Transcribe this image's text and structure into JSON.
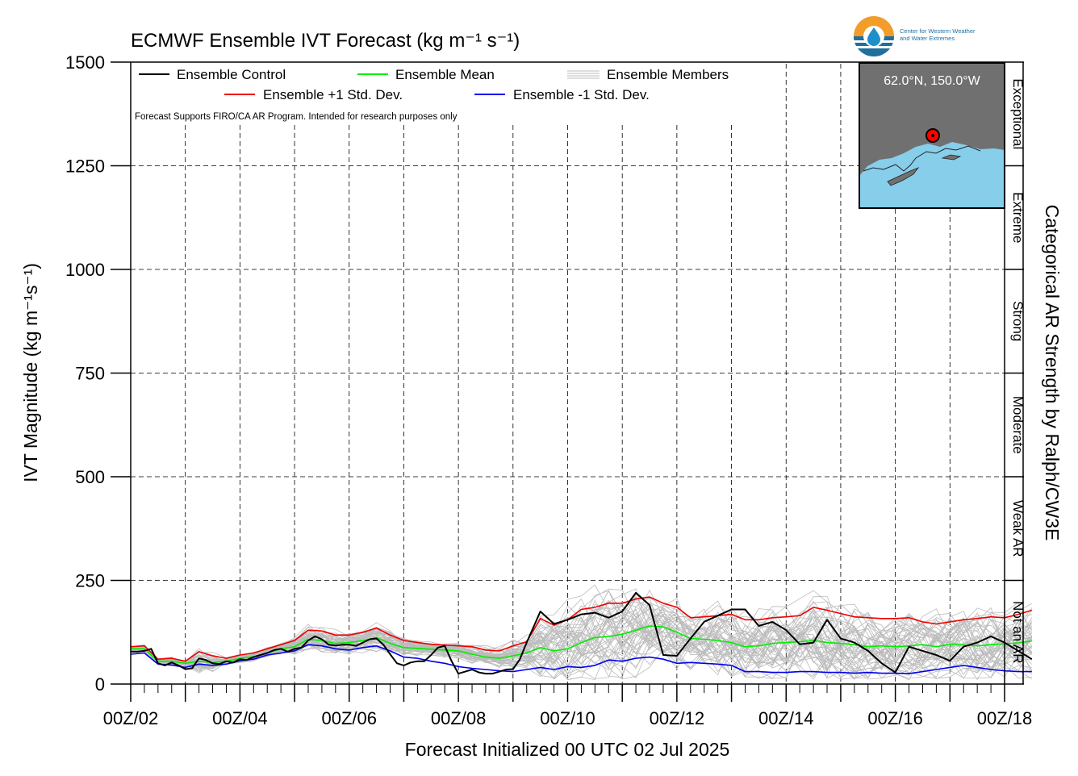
{
  "chart_data": {
    "type": "line",
    "title": "ECMWF Ensemble IVT Forecast (kg m⁻¹ s⁻¹)",
    "xlabel": "Forecast Initialized 00 UTC 02 Jul 2025",
    "ylabel": "IVT Magnitude (kg m⁻¹s⁻¹)",
    "right_label": "Categorical AR Strength by Ralph/CW3E",
    "note": "Forecast Supports FIRO/CA AR Program. Intended for research purposes only",
    "x_unit": "forecast hours from 00 UTC 02 Jul 2025",
    "xlim": [
      0,
      384
    ],
    "ylim": [
      0,
      1500
    ],
    "y_ticks": [
      0,
      250,
      500,
      750,
      1000,
      1250,
      1500
    ],
    "x_tick_hours": [
      0,
      48,
      96,
      144,
      192,
      240,
      288,
      336,
      384
    ],
    "x_tick_labels": [
      "00Z/02",
      "00Z/04",
      "00Z/06",
      "00Z/08",
      "00Z/10",
      "00Z/12",
      "00Z/14",
      "00Z/16",
      "00Z/18"
    ],
    "grid": true,
    "legend": {
      "placement": "top-left",
      "entries": [
        "Ensemble Control",
        "Ensemble Mean",
        "Ensemble Members",
        "Ensemble +1 Std. Dev.",
        "Ensemble -1 Std. Dev."
      ]
    },
    "categories": [
      {
        "label": "Not an AR",
        "range": [
          0,
          250
        ]
      },
      {
        "label": "Weak AR",
        "range": [
          250,
          500
        ]
      },
      {
        "label": "Moderate",
        "range": [
          500,
          750
        ]
      },
      {
        "label": "Strong",
        "range": [
          750,
          1000
        ]
      },
      {
        "label": "Extreme",
        "range": [
          1000,
          1250
        ]
      },
      {
        "label": "Exceptional",
        "range": [
          1250,
          1500
        ]
      }
    ],
    "series": [
      {
        "name": "Ensemble Control",
        "color": "#000000",
        "points": [
          [
            0,
            78
          ],
          [
            3,
            78
          ],
          [
            6,
            80
          ],
          [
            9,
            85
          ],
          [
            12,
            50
          ],
          [
            15,
            45
          ],
          [
            18,
            52
          ],
          [
            21,
            45
          ],
          [
            24,
            36
          ],
          [
            27,
            38
          ],
          [
            30,
            62
          ],
          [
            33,
            58
          ],
          [
            36,
            50
          ],
          [
            39,
            48
          ],
          [
            42,
            55
          ],
          [
            45,
            52
          ],
          [
            48,
            60
          ],
          [
            51,
            58
          ],
          [
            54,
            65
          ],
          [
            57,
            70
          ],
          [
            60,
            75
          ],
          [
            63,
            82
          ],
          [
            66,
            85
          ],
          [
            69,
            78
          ],
          [
            72,
            85
          ],
          [
            75,
            88
          ],
          [
            78,
            105
          ],
          [
            81,
            115
          ],
          [
            84,
            108
          ],
          [
            87,
            95
          ],
          [
            90,
            93
          ],
          [
            93,
            95
          ],
          [
            96,
            95
          ],
          [
            99,
            92
          ],
          [
            102,
            100
          ],
          [
            105,
            108
          ],
          [
            108,
            110
          ],
          [
            111,
            95
          ],
          [
            114,
            72
          ],
          [
            117,
            50
          ],
          [
            120,
            45
          ],
          [
            123,
            52
          ],
          [
            126,
            55
          ],
          [
            129,
            55
          ],
          [
            132,
            70
          ],
          [
            135,
            88
          ],
          [
            138,
            92
          ],
          [
            141,
            55
          ],
          [
            144,
            25
          ],
          [
            147,
            30
          ],
          [
            150,
            35
          ],
          [
            153,
            28
          ],
          [
            156,
            25
          ],
          [
            159,
            25
          ],
          [
            162,
            30
          ],
          [
            165,
            35
          ],
          [
            168,
            36
          ],
          [
            171,
            60
          ],
          [
            174,
            100
          ],
          [
            180,
            175
          ],
          [
            186,
            145
          ],
          [
            192,
            155
          ],
          [
            198,
            168
          ],
          [
            204,
            172
          ],
          [
            210,
            160
          ],
          [
            216,
            175
          ],
          [
            222,
            220
          ],
          [
            228,
            190
          ],
          [
            234,
            70
          ],
          [
            240,
            68
          ],
          [
            246,
            110
          ],
          [
            252,
            150
          ],
          [
            258,
            165
          ],
          [
            264,
            180
          ],
          [
            270,
            180
          ],
          [
            276,
            140
          ],
          [
            282,
            150
          ],
          [
            288,
            130
          ],
          [
            294,
            96
          ],
          [
            300,
            100
          ],
          [
            306,
            155
          ],
          [
            312,
            110
          ],
          [
            318,
            100
          ],
          [
            324,
            80
          ],
          [
            330,
            50
          ],
          [
            336,
            28
          ],
          [
            342,
            90
          ],
          [
            348,
            80
          ],
          [
            354,
            70
          ],
          [
            360,
            56
          ],
          [
            366,
            90
          ],
          [
            372,
            100
          ],
          [
            378,
            115
          ],
          [
            384,
            100
          ],
          [
            390,
            80
          ],
          [
            396,
            60
          ]
        ]
      },
      {
        "name": "Ensemble Mean",
        "color": "#00ee00",
        "points": [
          [
            0,
            85
          ],
          [
            6,
            85
          ],
          [
            12,
            55
          ],
          [
            18,
            55
          ],
          [
            24,
            50
          ],
          [
            30,
            55
          ],
          [
            36,
            52
          ],
          [
            42,
            55
          ],
          [
            48,
            62
          ],
          [
            54,
            66
          ],
          [
            60,
            75
          ],
          [
            66,
            85
          ],
          [
            72,
            90
          ],
          [
            78,
            108
          ],
          [
            84,
            105
          ],
          [
            90,
            98
          ],
          [
            96,
            100
          ],
          [
            102,
            105
          ],
          [
            108,
            112
          ],
          [
            114,
            98
          ],
          [
            120,
            88
          ],
          [
            126,
            86
          ],
          [
            132,
            84
          ],
          [
            138,
            82
          ],
          [
            144,
            80
          ],
          [
            150,
            72
          ],
          [
            156,
            65
          ],
          [
            162,
            62
          ],
          [
            168,
            68
          ],
          [
            174,
            75
          ],
          [
            180,
            88
          ],
          [
            186,
            80
          ],
          [
            192,
            85
          ],
          [
            198,
            100
          ],
          [
            204,
            112
          ],
          [
            210,
            115
          ],
          [
            216,
            120
          ],
          [
            222,
            130
          ],
          [
            228,
            140
          ],
          [
            234,
            138
          ],
          [
            240,
            125
          ],
          [
            246,
            110
          ],
          [
            252,
            108
          ],
          [
            258,
            105
          ],
          [
            264,
            100
          ],
          [
            270,
            90
          ],
          [
            276,
            92
          ],
          [
            282,
            98
          ],
          [
            288,
            100
          ],
          [
            294,
            102
          ],
          [
            300,
            105
          ],
          [
            306,
            100
          ],
          [
            312,
            98
          ],
          [
            318,
            95
          ],
          [
            324,
            90
          ],
          [
            330,
            92
          ],
          [
            336,
            90
          ],
          [
            342,
            92
          ],
          [
            348,
            95
          ],
          [
            354,
            90
          ],
          [
            360,
            96
          ],
          [
            366,
            94
          ],
          [
            372,
            92
          ],
          [
            378,
            95
          ],
          [
            384,
            97
          ],
          [
            390,
            99
          ],
          [
            396,
            104
          ]
        ]
      },
      {
        "name": "Ensemble +1 Std. Dev.",
        "color": "#ee0000",
        "points": [
          [
            0,
            90
          ],
          [
            6,
            92
          ],
          [
            12,
            60
          ],
          [
            18,
            62
          ],
          [
            24,
            55
          ],
          [
            30,
            78
          ],
          [
            36,
            68
          ],
          [
            42,
            62
          ],
          [
            48,
            70
          ],
          [
            54,
            75
          ],
          [
            60,
            85
          ],
          [
            66,
            95
          ],
          [
            72,
            105
          ],
          [
            78,
            130
          ],
          [
            84,
            128
          ],
          [
            90,
            118
          ],
          [
            96,
            118
          ],
          [
            102,
            125
          ],
          [
            108,
            135
          ],
          [
            114,
            118
          ],
          [
            120,
            105
          ],
          [
            126,
            100
          ],
          [
            132,
            96
          ],
          [
            138,
            94
          ],
          [
            144,
            92
          ],
          [
            150,
            90
          ],
          [
            156,
            82
          ],
          [
            162,
            80
          ],
          [
            168,
            92
          ],
          [
            174,
            102
          ],
          [
            180,
            158
          ],
          [
            186,
            142
          ],
          [
            192,
            155
          ],
          [
            198,
            180
          ],
          [
            204,
            185
          ],
          [
            210,
            195
          ],
          [
            216,
            195
          ],
          [
            222,
            205
          ],
          [
            228,
            210
          ],
          [
            234,
            195
          ],
          [
            240,
            185
          ],
          [
            246,
            160
          ],
          [
            252,
            162
          ],
          [
            258,
            165
          ],
          [
            264,
            168
          ],
          [
            270,
            155
          ],
          [
            276,
            155
          ],
          [
            282,
            160
          ],
          [
            288,
            162
          ],
          [
            294,
            165
          ],
          [
            300,
            185
          ],
          [
            306,
            178
          ],
          [
            312,
            170
          ],
          [
            318,
            162
          ],
          [
            324,
            160
          ],
          [
            330,
            158
          ],
          [
            336,
            158
          ],
          [
            342,
            160
          ],
          [
            348,
            150
          ],
          [
            354,
            145
          ],
          [
            360,
            150
          ],
          [
            366,
            155
          ],
          [
            372,
            158
          ],
          [
            378,
            162
          ],
          [
            384,
            160
          ],
          [
            390,
            168
          ],
          [
            396,
            178
          ]
        ]
      },
      {
        "name": "Ensemble -1 Std. Dev.",
        "color": "#0000ee",
        "points": [
          [
            0,
            72
          ],
          [
            6,
            75
          ],
          [
            12,
            48
          ],
          [
            18,
            46
          ],
          [
            24,
            40
          ],
          [
            30,
            48
          ],
          [
            36,
            45
          ],
          [
            42,
            48
          ],
          [
            48,
            56
          ],
          [
            54,
            60
          ],
          [
            60,
            70
          ],
          [
            66,
            75
          ],
          [
            72,
            80
          ],
          [
            78,
            95
          ],
          [
            84,
            92
          ],
          [
            90,
            85
          ],
          [
            96,
            82
          ],
          [
            102,
            88
          ],
          [
            108,
            92
          ],
          [
            114,
            80
          ],
          [
            120,
            65
          ],
          [
            126,
            62
          ],
          [
            132,
            55
          ],
          [
            138,
            50
          ],
          [
            144,
            42
          ],
          [
            150,
            38
          ],
          [
            156,
            35
          ],
          [
            162,
            32
          ],
          [
            168,
            30
          ],
          [
            174,
            35
          ],
          [
            180,
            40
          ],
          [
            186,
            35
          ],
          [
            192,
            42
          ],
          [
            198,
            40
          ],
          [
            204,
            45
          ],
          [
            210,
            58
          ],
          [
            216,
            55
          ],
          [
            222,
            62
          ],
          [
            228,
            65
          ],
          [
            234,
            60
          ],
          [
            240,
            50
          ],
          [
            246,
            52
          ],
          [
            252,
            50
          ],
          [
            258,
            48
          ],
          [
            264,
            45
          ],
          [
            270,
            30
          ],
          [
            276,
            30
          ],
          [
            282,
            28
          ],
          [
            288,
            28
          ],
          [
            294,
            30
          ],
          [
            300,
            30
          ],
          [
            306,
            28
          ],
          [
            312,
            28
          ],
          [
            318,
            26
          ],
          [
            324,
            28
          ],
          [
            330,
            26
          ],
          [
            336,
            26
          ],
          [
            342,
            25
          ],
          [
            348,
            30
          ],
          [
            354,
            35
          ],
          [
            360,
            40
          ],
          [
            366,
            45
          ],
          [
            372,
            40
          ],
          [
            378,
            35
          ],
          [
            384,
            32
          ],
          [
            390,
            30
          ],
          [
            396,
            30
          ]
        ]
      }
    ]
  },
  "location_label": "62.0°N, 150.0°W",
  "logo_text": {
    "line1": "Center for Western Weather",
    "line2": "and Water Extremes"
  },
  "colors": {
    "members": "#bbbbbb",
    "map_water": "#87ceeb",
    "map_land": "#707070",
    "marker": "#ff0000"
  },
  "icons": {
    "logo": "cw3e-logo-icon",
    "map": "alaska-inset-map"
  }
}
